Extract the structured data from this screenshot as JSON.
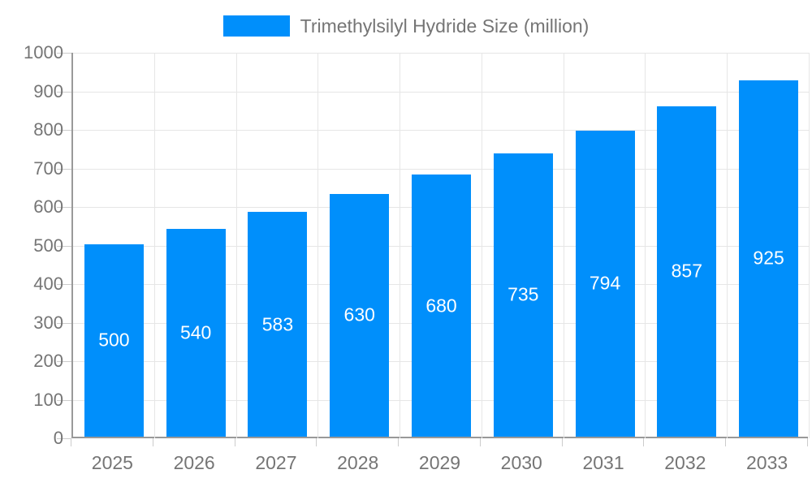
{
  "legend": {
    "label": "Trimethylsilyl Hydride Size (million)"
  },
  "chart_data": {
    "type": "bar",
    "title": "Trimethylsilyl Hydride Size (million)",
    "categories": [
      "2025",
      "2026",
      "2027",
      "2028",
      "2029",
      "2030",
      "2031",
      "2032",
      "2033"
    ],
    "series": [
      {
        "name": "Trimethylsilyl Hydride Size (million)",
        "values": [
          500,
          540,
          583,
          630,
          680,
          735,
          794,
          857,
          925
        ]
      }
    ],
    "xlabel": "",
    "ylabel": "",
    "ylim": [
      0,
      1000
    ],
    "ytick_step": 100,
    "grid": true,
    "legend_position": "top",
    "bar_labels_inside": true,
    "colors": {
      "bar": "#008FFB",
      "bar_label": "#FFFFFF",
      "axis_text": "#757575",
      "grid": "#E6E6E6",
      "axis_line": "#999999",
      "tick": "#CCCCCC",
      "background": "#FFFFFF"
    }
  }
}
